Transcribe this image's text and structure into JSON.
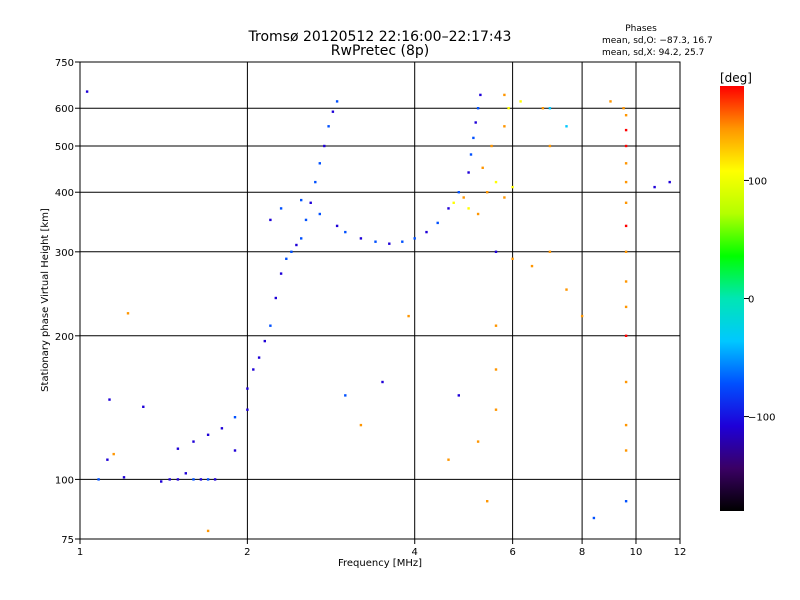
{
  "chart_data": {
    "type": "scatter",
    "title": "Tromsø 20120512 22:16:00–22:17:43",
    "subtitle": "RwPretec (8p)",
    "xlabel": "Frequency [MHz]",
    "ylabel": "Stationary phase Virtual Height [km]",
    "x_scale": "log",
    "y_scale": "log",
    "xlim": [
      1,
      12
    ],
    "ylim": [
      75,
      750
    ],
    "x_ticks": [
      1,
      2,
      4,
      6,
      8,
      10,
      12
    ],
    "y_ticks": [
      75,
      100,
      200,
      300,
      400,
      500,
      600,
      750
    ],
    "grid": true,
    "phases_title": "Phases",
    "phases_lines": [
      "mean, sd,O: −87.3, 16.7",
      "mean, sd,X:  94.2, 25.7"
    ],
    "colorbar": {
      "label": "[deg]",
      "min": -180,
      "max": 180,
      "ticks": [
        100,
        0,
        -100
      ],
      "colors": [
        "#000000",
        "#3a0064",
        "#1e00d8",
        "#0050ff",
        "#00c8ff",
        "#00e6b4",
        "#00ff00",
        "#b4ff00",
        "#ffff00",
        "#ff9600",
        "#ff0000"
      ]
    },
    "series": [
      {
        "values": [
          [
            1.03,
            650,
            -100
          ],
          [
            1.08,
            100,
            -90
          ],
          [
            1.12,
            110,
            -100
          ],
          [
            1.13,
            147,
            -100
          ],
          [
            1.15,
            113,
            130
          ],
          [
            1.2,
            101,
            -100
          ],
          [
            1.22,
            223,
            130
          ],
          [
            1.3,
            142,
            -100
          ],
          [
            1.4,
            99,
            -100
          ],
          [
            1.45,
            100,
            -95
          ],
          [
            1.5,
            100,
            -100
          ],
          [
            1.55,
            103,
            -95
          ],
          [
            1.6,
            100,
            -80
          ],
          [
            1.65,
            100,
            -110
          ],
          [
            1.7,
            100,
            -90
          ],
          [
            1.75,
            100,
            -100
          ],
          [
            1.5,
            116,
            -100
          ],
          [
            1.6,
            120,
            -95
          ],
          [
            1.7,
            124,
            -100
          ],
          [
            1.8,
            128,
            -100
          ],
          [
            1.9,
            135,
            -90
          ],
          [
            2.0,
            140,
            -100
          ],
          [
            1.7,
            78,
            130
          ],
          [
            1.9,
            115,
            -100
          ],
          [
            2.0,
            155,
            -100
          ],
          [
            2.05,
            170,
            -100
          ],
          [
            2.1,
            180,
            -95
          ],
          [
            2.15,
            195,
            -100
          ],
          [
            2.2,
            210,
            -90
          ],
          [
            2.25,
            240,
            -100
          ],
          [
            2.3,
            270,
            -100
          ],
          [
            2.35,
            290,
            -90
          ],
          [
            2.4,
            300,
            -80
          ],
          [
            2.45,
            310,
            -100
          ],
          [
            2.5,
            320,
            -90
          ],
          [
            2.55,
            350,
            -80
          ],
          [
            2.6,
            380,
            -100
          ],
          [
            2.65,
            420,
            -90
          ],
          [
            2.7,
            460,
            -80
          ],
          [
            2.75,
            500,
            -100
          ],
          [
            2.8,
            550,
            -90
          ],
          [
            2.85,
            590,
            -100
          ],
          [
            2.9,
            620,
            -80
          ],
          [
            2.2,
            350,
            -100
          ],
          [
            2.3,
            370,
            -90
          ],
          [
            2.5,
            385,
            -80
          ],
          [
            2.7,
            360,
            -60
          ],
          [
            2.9,
            340,
            -100
          ],
          [
            3.0,
            330,
            -90
          ],
          [
            3.2,
            320,
            -100
          ],
          [
            3.4,
            315,
            -90
          ],
          [
            3.6,
            312,
            -100
          ],
          [
            3.8,
            315,
            -80
          ],
          [
            4.0,
            320,
            -90
          ],
          [
            4.2,
            330,
            -100
          ],
          [
            4.4,
            345,
            -80
          ],
          [
            4.6,
            370,
            -100
          ],
          [
            4.8,
            400,
            -90
          ],
          [
            5.0,
            440,
            -100
          ],
          [
            5.05,
            480,
            -90
          ],
          [
            5.1,
            520,
            -80
          ],
          [
            5.15,
            560,
            -100
          ],
          [
            5.2,
            600,
            -90
          ],
          [
            5.25,
            640,
            -100
          ],
          [
            4.7,
            380,
            120
          ],
          [
            4.9,
            390,
            130
          ],
          [
            5.0,
            370,
            120
          ],
          [
            5.2,
            360,
            140
          ],
          [
            5.4,
            400,
            150
          ],
          [
            5.6,
            420,
            120
          ],
          [
            5.8,
            390,
            130
          ],
          [
            6.0,
            410,
            110
          ],
          [
            5.3,
            450,
            130
          ],
          [
            5.5,
            500,
            150
          ],
          [
            5.8,
            550,
            140
          ],
          [
            5.9,
            600,
            120
          ],
          [
            6.2,
            620,
            110
          ],
          [
            6.8,
            600,
            130
          ],
          [
            7.0,
            500,
            150
          ],
          [
            7.5,
            550,
            -20
          ],
          [
            5.6,
            300,
            -100
          ],
          [
            6.0,
            290,
            150
          ],
          [
            6.5,
            280,
            130
          ],
          [
            7.0,
            300,
            140
          ],
          [
            7.5,
            250,
            150
          ],
          [
            8.0,
            220,
            130
          ],
          [
            9.0,
            620,
            150
          ],
          [
            9.5,
            600,
            160
          ],
          [
            9.6,
            580,
            160
          ],
          [
            9.6,
            540,
            170
          ],
          [
            9.6,
            500,
            170
          ],
          [
            9.6,
            460,
            160
          ],
          [
            9.6,
            420,
            150
          ],
          [
            9.6,
            380,
            140
          ],
          [
            9.6,
            340,
            170
          ],
          [
            9.6,
            300,
            160
          ],
          [
            9.6,
            260,
            150
          ],
          [
            9.6,
            230,
            160
          ],
          [
            9.6,
            200,
            170
          ],
          [
            9.6,
            160,
            150
          ],
          [
            9.6,
            130,
            160
          ],
          [
            9.6,
            115,
            150
          ],
          [
            9.6,
            90,
            -60
          ],
          [
            8.4,
            83,
            -90
          ],
          [
            5.6,
            140,
            150
          ],
          [
            5.6,
            170,
            140
          ],
          [
            5.6,
            210,
            150
          ],
          [
            5.4,
            90,
            130
          ],
          [
            5.2,
            120,
            150
          ],
          [
            4.8,
            150,
            -100
          ],
          [
            4.6,
            110,
            140
          ],
          [
            3.9,
            220,
            150
          ],
          [
            3.5,
            160,
            -100
          ],
          [
            3.2,
            130,
            140
          ],
          [
            3.0,
            150,
            -90
          ],
          [
            10.8,
            410,
            -110
          ],
          [
            11.5,
            420,
            -100
          ],
          [
            7.0,
            600,
            -40
          ],
          [
            5.8,
            640,
            130
          ]
        ]
      }
    ]
  }
}
